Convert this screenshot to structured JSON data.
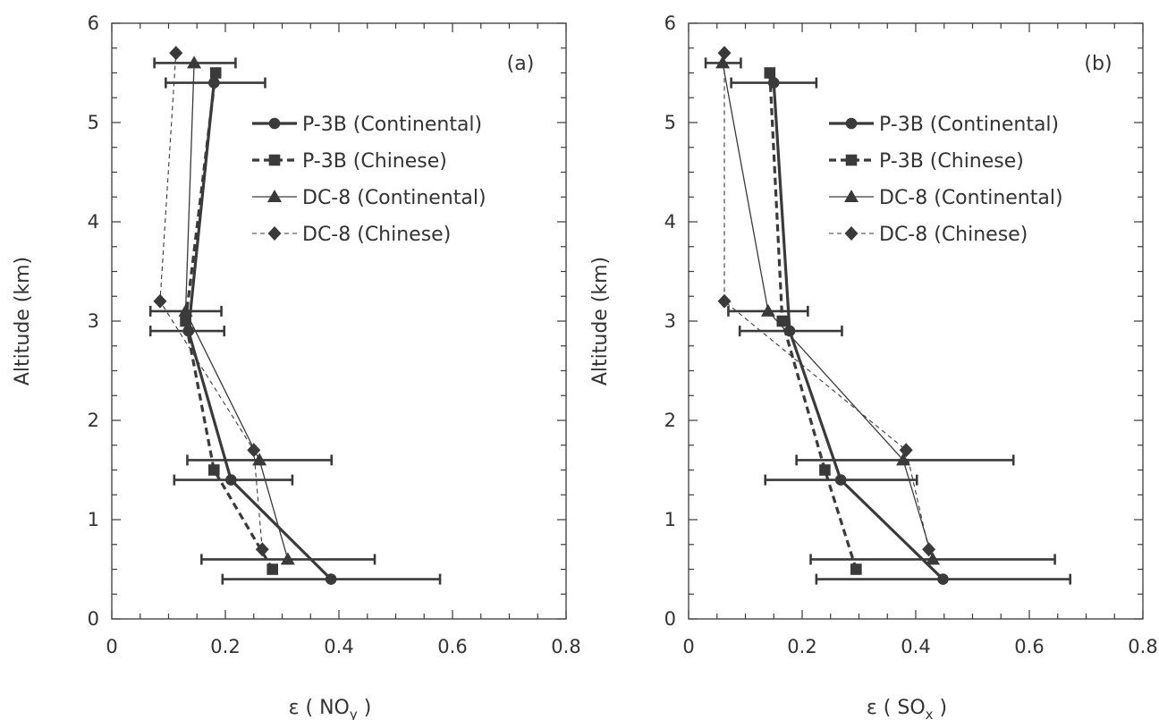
{
  "chart_data": [
    {
      "type": "line",
      "panel_label": "(a)",
      "ylabel": "Altitude (km)",
      "xlabel_main": "ε ( NO",
      "xlabel_sub": "y",
      "xlabel_end": " )",
      "xlim": [
        0,
        0.8
      ],
      "ylim": [
        0,
        6
      ],
      "xticks": [
        "0",
        "0.2",
        "0.4",
        "0.6",
        "0.8"
      ],
      "yticks": [
        "0",
        "1",
        "2",
        "3",
        "4",
        "5",
        "6"
      ],
      "legend_position": "upper-right",
      "series": [
        {
          "name": "P-3B (Continental)",
          "marker": "circle",
          "line": "thick-solid",
          "points": [
            [
              0.386,
              0.4
            ],
            [
              0.21,
              1.4
            ],
            [
              0.135,
              2.9
            ],
            [
              0.18,
              5.4
            ]
          ],
          "errors": [
            [
              0.195,
              0.578
            ],
            [
              0.11,
              0.318
            ],
            [
              0.068,
              0.198
            ],
            [
              0.095,
              0.27
            ]
          ]
        },
        {
          "name": "P-3B (Chinese)",
          "marker": "square",
          "line": "thick-dashed",
          "points": [
            [
              0.283,
              0.5
            ],
            [
              0.18,
              1.5
            ],
            [
              0.13,
              3.0
            ],
            [
              0.183,
              5.5
            ]
          ],
          "errors": [
            [],
            [],
            [],
            []
          ]
        },
        {
          "name": "DC-8 (Continental)",
          "marker": "triangle",
          "line": "thin-solid",
          "points": [
            [
              0.31,
              0.6
            ],
            [
              0.26,
              1.6
            ],
            [
              0.13,
              3.1
            ],
            [
              0.145,
              5.6
            ]
          ],
          "errors": [
            [
              0.158,
              0.463
            ],
            [
              0.133,
              0.387
            ],
            [
              0.068,
              0.193
            ],
            [
              0.075,
              0.218
            ]
          ]
        },
        {
          "name": "DC-8 (Chinese)",
          "marker": "diamond",
          "line": "thin-dashed",
          "points": [
            [
              0.265,
              0.7
            ],
            [
              0.25,
              1.7
            ],
            [
              0.085,
              3.2
            ],
            [
              0.113,
              5.7
            ]
          ],
          "errors": [
            [],
            [],
            [],
            []
          ]
        }
      ]
    },
    {
      "type": "line",
      "panel_label": "(b)",
      "ylabel": "Altitude (km)",
      "xlabel_main": "ε ( SO",
      "xlabel_sub": "x",
      "xlabel_end": " )",
      "xlim": [
        0,
        0.8
      ],
      "ylim": [
        0,
        6
      ],
      "xticks": [
        "0",
        "0.2",
        "0.4",
        "0.6",
        "0.8"
      ],
      "yticks": [
        "0",
        "1",
        "2",
        "3",
        "4",
        "5",
        "6"
      ],
      "legend_position": "upper-right",
      "series": [
        {
          "name": "P-3B (Continental)",
          "marker": "circle",
          "line": "thick-solid",
          "points": [
            [
              0.448,
              0.4
            ],
            [
              0.268,
              1.4
            ],
            [
              0.178,
              2.9
            ],
            [
              0.15,
              5.4
            ]
          ],
          "errors": [
            [
              0.225,
              0.672
            ],
            [
              0.135,
              0.402
            ],
            [
              0.09,
              0.27
            ],
            [
              0.075,
              0.225
            ]
          ]
        },
        {
          "name": "P-3B (Chinese)",
          "marker": "square",
          "line": "thick-dashed",
          "points": [
            [
              0.295,
              0.5
            ],
            [
              0.24,
              1.5
            ],
            [
              0.165,
              3.0
            ],
            [
              0.143,
              5.5
            ]
          ],
          "errors": [
            [],
            [],
            [],
            []
          ]
        },
        {
          "name": "DC-8 (Continental)",
          "marker": "triangle",
          "line": "thin-solid",
          "points": [
            [
              0.43,
              0.6
            ],
            [
              0.378,
              1.6
            ],
            [
              0.14,
              3.1
            ],
            [
              0.06,
              5.6
            ]
          ],
          "errors": [
            [
              0.215,
              0.645
            ],
            [
              0.19,
              0.572
            ],
            [
              0.07,
              0.21
            ],
            [
              0.03,
              0.092
            ]
          ]
        },
        {
          "name": "DC-8 (Chinese)",
          "marker": "diamond",
          "line": "thin-dashed",
          "points": [
            [
              0.423,
              0.7
            ],
            [
              0.383,
              1.7
            ],
            [
              0.063,
              3.2
            ],
            [
              0.063,
              5.7
            ]
          ],
          "errors": [
            [],
            [],
            [],
            []
          ]
        }
      ]
    }
  ]
}
